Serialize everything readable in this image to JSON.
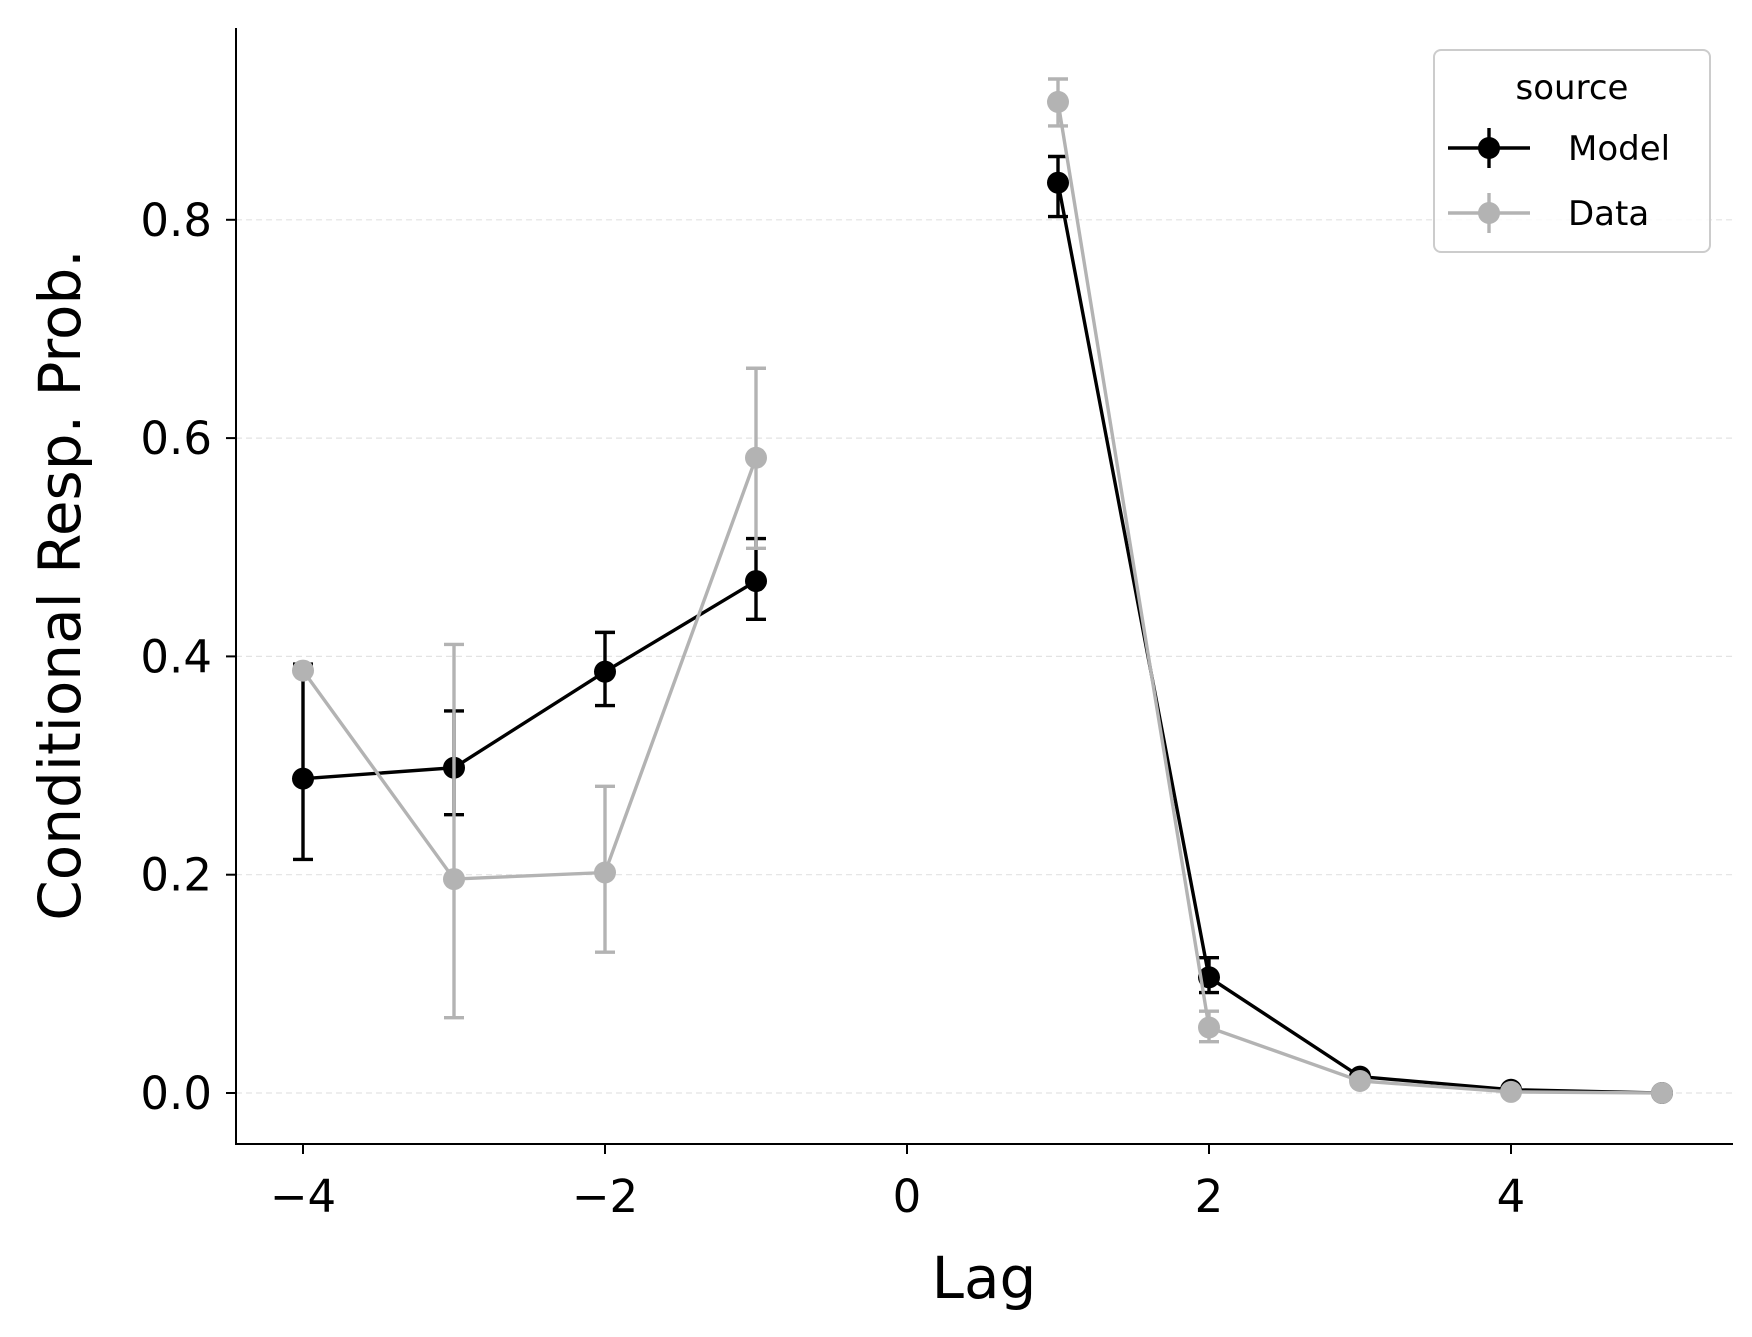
{
  "chart_data": {
    "type": "line",
    "title": "",
    "xlabel": "Lag",
    "ylabel": "Conditional Resp. Prob.",
    "xlim": [
      -4.45,
      5.45
    ],
    "ylim": [
      -0.046,
      0.975
    ],
    "xticks": [
      -4,
      -2,
      0,
      2,
      4
    ],
    "xtick_labels": [
      "−4",
      "−2",
      "0",
      "2",
      "4"
    ],
    "yticks": [
      0.0,
      0.2,
      0.4,
      0.6,
      0.8
    ],
    "ytick_labels": [
      "0.0",
      "0.2",
      "0.4",
      "0.6",
      "0.8"
    ],
    "grid": "horizontal dashed",
    "legend": {
      "title": "source",
      "placement": "top-right",
      "entries": [
        "Model",
        "Data"
      ]
    },
    "series": [
      {
        "name": "Model",
        "color": "#000000",
        "segments": [
          {
            "x": [
              -4,
              -3,
              -2,
              -1
            ],
            "y": [
              0.288,
              0.298,
              0.386,
              0.469
            ],
            "err_low": [
              0.214,
              0.255,
              0.355,
              0.434
            ],
            "err_high": [
              0.393,
              0.35,
              0.422,
              0.508
            ]
          },
          {
            "x": [
              1,
              2,
              3,
              4,
              5
            ],
            "y": [
              0.834,
              0.106,
              0.015,
              0.003,
              0.0
            ],
            "err_low": [
              0.803,
              0.092,
              0.012,
              0.002,
              0.0
            ],
            "err_high": [
              0.858,
              0.124,
              0.018,
              0.004,
              0.0
            ]
          }
        ]
      },
      {
        "name": "Data",
        "color": "#b3b3b3",
        "segments": [
          {
            "x": [
              -4,
              -3,
              -2,
              -1
            ],
            "y": [
              0.387,
              0.196,
              0.202,
              0.582
            ],
            "err_low": [
              0.385,
              0.069,
              0.129,
              0.499
            ],
            "err_high": [
              0.39,
              0.411,
              0.281,
              0.664
            ]
          },
          {
            "x": [
              1,
              2,
              3,
              4,
              5
            ],
            "y": [
              0.908,
              0.06,
              0.011,
              0.001,
              0.0
            ],
            "err_low": [
              0.886,
              0.047,
              0.009,
              0.001,
              0.0
            ],
            "err_high": [
              0.929,
              0.075,
              0.013,
              0.001,
              0.0
            ]
          }
        ]
      }
    ]
  }
}
